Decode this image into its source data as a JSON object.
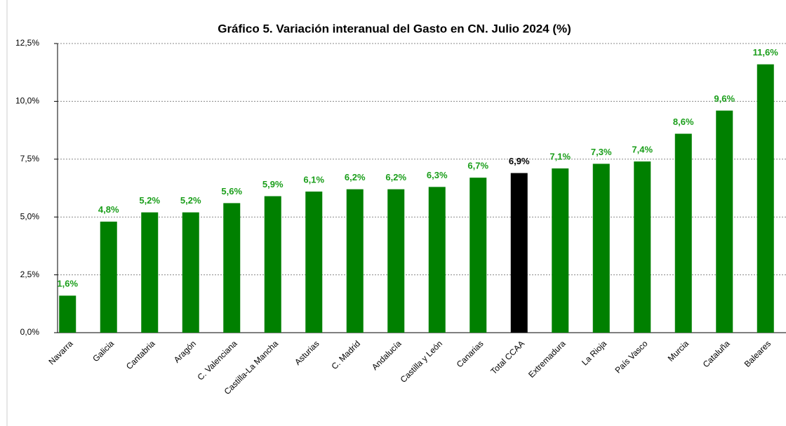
{
  "chart_data": {
    "type": "bar",
    "title": "Gráfico 5. Variación interanual del Gasto en CN. Julio 2024 (%)",
    "categories": [
      "Navarra",
      "Galicia",
      "Cantabria",
      "Aragón",
      "C. Valenciana",
      "Castilla-La Mancha",
      "Asturias",
      "C. Madrid",
      "Andalucía",
      "Castilla y León",
      "Canarias",
      "Total CCAA",
      "Extremadura",
      "La Rioja",
      "País Vasco",
      "Murcia",
      "Cataluña",
      "Baleares"
    ],
    "values": [
      1.6,
      4.8,
      5.2,
      5.2,
      5.6,
      5.9,
      6.1,
      6.2,
      6.2,
      6.3,
      6.7,
      6.9,
      7.1,
      7.3,
      7.4,
      8.6,
      9.6,
      11.6
    ],
    "value_labels": [
      "1,6%",
      "4,8%",
      "5,2%",
      "5,2%",
      "5,6%",
      "5,9%",
      "6,1%",
      "6,2%",
      "6,2%",
      "6,3%",
      "6,7%",
      "6,9%",
      "7,1%",
      "7,3%",
      "7,4%",
      "8,6%",
      "9,6%",
      "11,6%"
    ],
    "colors": [
      "#008000",
      "#008000",
      "#008000",
      "#008000",
      "#008000",
      "#008000",
      "#008000",
      "#008000",
      "#008000",
      "#008000",
      "#008000",
      "#000000",
      "#008000",
      "#008000",
      "#008000",
      "#008000",
      "#008000",
      "#008000"
    ],
    "ylim": [
      0,
      12.5
    ],
    "yticks": [
      {
        "value": 0,
        "label": "0,0%"
      },
      {
        "value": 2.5,
        "label": "2,5%"
      },
      {
        "value": 5,
        "label": "5,0%"
      },
      {
        "value": 7.5,
        "label": "7,5%"
      },
      {
        "value": 10,
        "label": "10,0%"
      },
      {
        "value": 12.5,
        "label": "12,5%"
      }
    ],
    "grid": true
  }
}
